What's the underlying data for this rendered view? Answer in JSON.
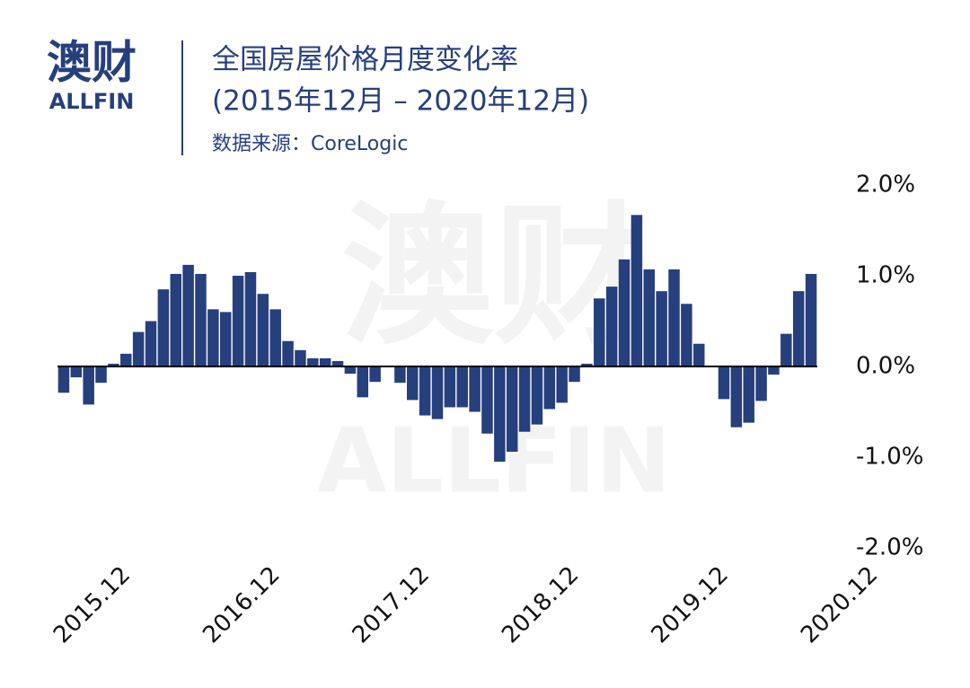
{
  "logo": {
    "name": "澳财",
    "brand": "ALLFIN"
  },
  "chart_data": {
    "type": "bar",
    "title": "全国房屋价格月度变化率",
    "subtitle": "(2015年12月 – 2020年12月)",
    "source": "数据来源：CoreLogic",
    "color": "#263f7d",
    "categories": [
      "2015.12",
      null,
      null,
      null,
      null,
      null,
      null,
      null,
      null,
      null,
      null,
      null,
      "2016.12",
      null,
      null,
      null,
      null,
      null,
      null,
      null,
      null,
      null,
      null,
      null,
      "2017.12",
      null,
      null,
      null,
      null,
      null,
      null,
      null,
      null,
      null,
      null,
      null,
      "2018.12",
      null,
      null,
      null,
      null,
      null,
      null,
      null,
      null,
      null,
      null,
      null,
      "2019.12",
      null,
      null,
      null,
      null,
      null,
      null,
      null,
      null,
      null,
      null,
      null,
      "2020.12"
    ],
    "values": [
      -0.29,
      -0.12,
      -0.42,
      -0.18,
      0.03,
      0.14,
      0.38,
      0.5,
      0.85,
      1.02,
      1.12,
      1.02,
      0.63,
      0.6,
      1.0,
      1.04,
      0.8,
      0.63,
      0.28,
      0.18,
      0.09,
      0.09,
      0.06,
      -0.08,
      -0.34,
      -0.17,
      0.0,
      -0.18,
      -0.37,
      -0.54,
      -0.58,
      -0.45,
      -0.45,
      -0.5,
      -0.74,
      -1.05,
      -0.94,
      -0.72,
      -0.64,
      -0.47,
      -0.4,
      -0.17,
      0.03,
      0.75,
      0.88,
      1.18,
      1.67,
      1.07,
      0.83,
      1.07,
      0.69,
      0.25,
      0.0,
      -0.36,
      -0.67,
      -0.62,
      -0.38,
      -0.09,
      0.36,
      0.83,
      1.02
    ],
    "ylim": [
      -2,
      2
    ],
    "yticks": [
      {
        "value": 2,
        "label": "2.0%"
      },
      {
        "value": 1,
        "label": "1.0%"
      },
      {
        "value": 0,
        "label": "0.0%"
      },
      {
        "value": -1,
        "label": "-1.0%"
      },
      {
        "value": -2,
        "label": "-2.0%"
      }
    ],
    "grid": false
  }
}
